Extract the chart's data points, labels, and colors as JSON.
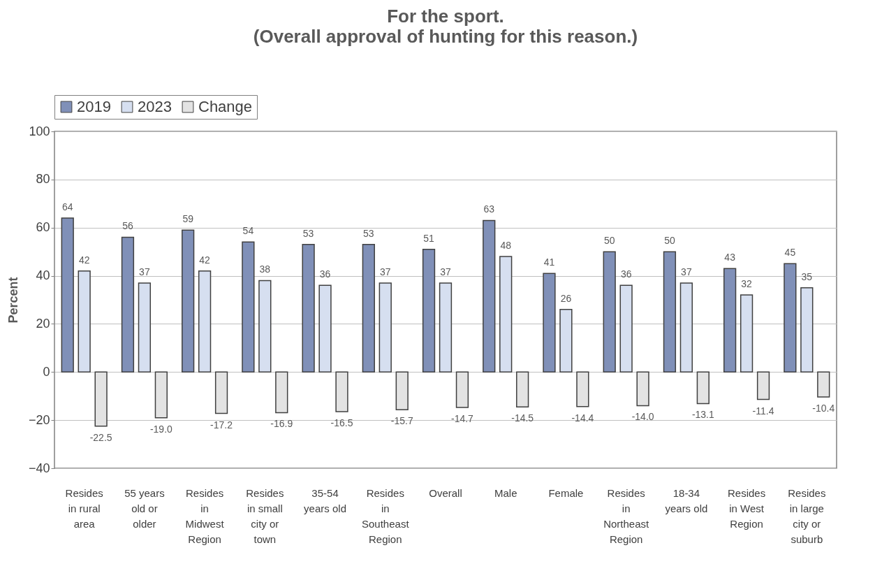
{
  "chart_data": {
    "type": "bar",
    "title": "For the sport.",
    "subtitle": "(Overall approval of hunting for this reason.)",
    "ylabel": "Percent",
    "categories": [
      "Resides in rural area",
      "55 years old or older",
      "Resides in Midwest Region",
      "Resides in small city or town",
      "35-54 years old",
      "Resides in Southeast Region",
      "Overall",
      "Male",
      "Female",
      "Resides in Northeast Region",
      "18-34 years old",
      "Resides in West Region",
      "Resides in large city or suburb"
    ],
    "series": [
      {
        "name": "2019",
        "color": "#8090b8",
        "values": [
          64,
          56,
          59,
          54,
          53,
          53,
          51,
          63,
          41,
          50,
          50,
          43,
          45
        ],
        "value_labels": [
          "64",
          "56",
          "59",
          "54",
          "53",
          "53",
          "51",
          "63",
          "41",
          "50",
          "50",
          "43",
          "45"
        ]
      },
      {
        "name": "2023",
        "color": "#d6dff0",
        "values": [
          42,
          37,
          42,
          38,
          36,
          37,
          37,
          48,
          26,
          36,
          37,
          32,
          35
        ],
        "value_labels": [
          "42",
          "37",
          "42",
          "38",
          "36",
          "37",
          "37",
          "48",
          "26",
          "36",
          "37",
          "32",
          "35"
        ]
      },
      {
        "name": "Change",
        "color": "#e3e3e3",
        "values": [
          -22.5,
          -19.0,
          -17.2,
          -16.9,
          -16.5,
          -15.7,
          -14.7,
          -14.5,
          -14.4,
          -14.0,
          -13.1,
          -11.4,
          -10.4
        ],
        "value_labels": [
          "-22.5",
          "-19.0",
          "-17.2",
          "-16.9",
          "-16.5",
          "-15.7",
          "-14.7",
          "-14.5",
          "-14.4",
          "-14.0",
          "-13.1",
          "-11.4",
          "-10.4"
        ]
      }
    ],
    "ylim": [
      -40,
      100
    ],
    "yticks": [
      -40,
      -20,
      0,
      20,
      40,
      60,
      80,
      100
    ],
    "grid": "y",
    "legend": "top"
  }
}
